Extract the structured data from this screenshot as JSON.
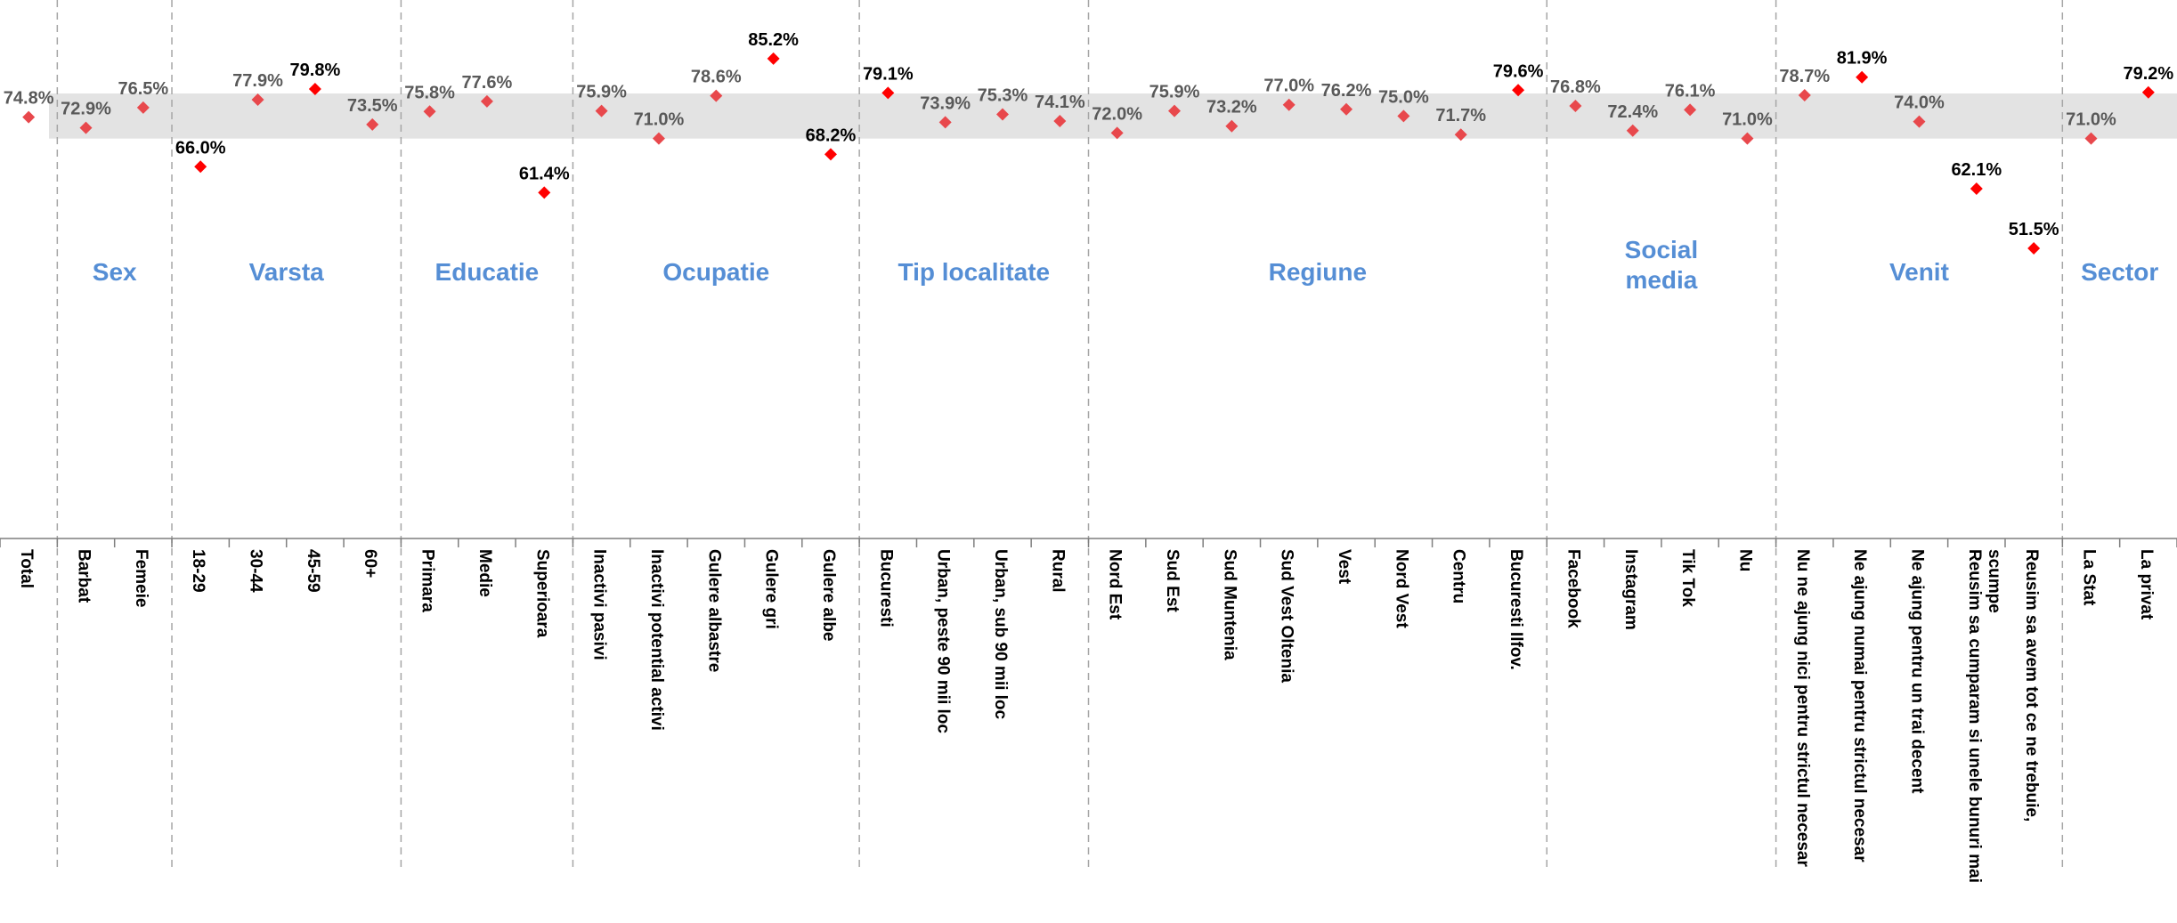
{
  "chart_data": {
    "type": "scatter",
    "marker": "diamond",
    "band": {
      "ylow": 71.0,
      "yhigh": 79.0
    },
    "ylim": [
      20,
      90
    ],
    "x_title": "",
    "y_title": "",
    "groups": [
      {
        "name": "",
        "start": 0,
        "end": 1
      },
      {
        "name": "Sex",
        "start": 1,
        "end": 3
      },
      {
        "name": "Varsta",
        "start": 3,
        "end": 7
      },
      {
        "name": "Educatie",
        "start": 7,
        "end": 10
      },
      {
        "name": "Ocupatie",
        "start": 10,
        "end": 15
      },
      {
        "name": "Tip localitate",
        "start": 15,
        "end": 19
      },
      {
        "name": "Regiune",
        "start": 19,
        "end": 27
      },
      {
        "name": "Social\nmedia",
        "start": 27,
        "end": 31
      },
      {
        "name": "Venit",
        "start": 31,
        "end": 36
      },
      {
        "name": "Sector",
        "start": 36,
        "end": 38
      }
    ],
    "categories": [
      "Total",
      "Barbat",
      "Femeie",
      "18-29",
      "30-44",
      "45-59",
      "60+",
      "Primara",
      "Medie",
      "Superioara",
      "Inactivi pasivi",
      "Inactivi potential activi",
      "Gulere albastre",
      "Gulere gri",
      "Gulere albe",
      "Bucuresti",
      "Urban, peste 90 mii loc",
      "Urban, sub 90 mii loc",
      "Rural",
      "Nord Est",
      "Sud Est",
      "Sud Muntenia",
      "Sud Vest Oltenia",
      "Vest",
      "Nord Vest",
      "Centru",
      "Bucuresti Ilfov.",
      "Facebook",
      "Instagram",
      "Tik Tok",
      "Nu",
      "Nu ne ajung nici pentru strictul necesar",
      "Ne ajung numai pentru strictul necesar",
      "Ne ajung pentru un trai decent",
      "Reusim sa cumparam si unele bunuri mai scumpe",
      "Reusim sa avem tot ce ne trebuie,",
      "La Stat",
      "La privat"
    ],
    "values": [
      74.8,
      72.9,
      76.5,
      66.0,
      77.9,
      79.8,
      73.5,
      75.8,
      77.6,
      61.4,
      75.9,
      71.0,
      78.6,
      85.2,
      68.2,
      79.1,
      73.9,
      75.3,
      74.1,
      72.0,
      75.9,
      73.2,
      77.0,
      76.2,
      75.0,
      71.7,
      79.6,
      76.8,
      72.4,
      76.1,
      71.0,
      78.7,
      81.9,
      74.0,
      62.1,
      51.5,
      71.0,
      79.2
    ],
    "labels": [
      "74.8%",
      "72.9%",
      "76.5%",
      "66.0%",
      "77.9%",
      "79.8%",
      "73.5%",
      "75.8%",
      "77.6%",
      "61.4%",
      "75.9%",
      "71.0%",
      "78.6%",
      "85.2%",
      "68.2%",
      "79.1%",
      "73.9%",
      "75.3%",
      "74.1%",
      "72.0%",
      "75.9%",
      "73.2%",
      "77.0%",
      "76.2%",
      "75.0%",
      "71.7%",
      "79.6%",
      "76.8%",
      "72.4%",
      "76.1%",
      "71.0%",
      "78.7%",
      "81.9%",
      "74.0%",
      "62.1%",
      "51.5%",
      "71.0%",
      "79.2%"
    ],
    "colors": {
      "point_inside": "#e8484c",
      "point_outside": "#ff0000",
      "label_inside": "#595959",
      "label_outside": "#000000",
      "band": "#e3e3e3",
      "group_title": "#558ed5",
      "divider": "#a6a6a6",
      "axis": "#7f7f7f"
    }
  }
}
